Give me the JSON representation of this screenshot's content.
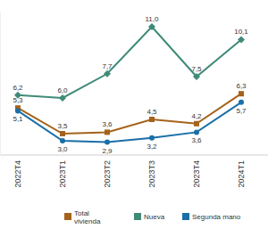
{
  "chart_data": {
    "type": "line",
    "categories": [
      "2022T4",
      "2023T1",
      "2023T2",
      "2023T3",
      "2023T4",
      "2024T1"
    ],
    "series": [
      {
        "name": "Total vivienda",
        "color": "#a5621b",
        "marker": "square",
        "values": [
          5.3,
          3.5,
          3.6,
          4.5,
          4.2,
          6.3
        ],
        "value_labels": [
          "5,3",
          "3,5",
          "3,6",
          "4,5",
          "4,2",
          "6,3"
        ]
      },
      {
        "name": "Nueva",
        "color": "#3f8a78",
        "marker": "diamond",
        "values": [
          6.2,
          6.0,
          7.7,
          11.0,
          7.5,
          10.1
        ],
        "value_labels": [
          "6,2",
          "6,0",
          "7,7",
          "11,0",
          "7,5",
          "10,1"
        ]
      },
      {
        "name": "Segunda mano",
        "color": "#1a6fa8",
        "marker": "circle",
        "values": [
          5.1,
          3.0,
          2.9,
          3.2,
          3.6,
          5.7
        ],
        "value_labels": [
          "5,1",
          "3,0",
          "2,9",
          "3,2",
          "3,6",
          "5,7"
        ]
      }
    ],
    "ylim": [
      2,
      12
    ],
    "data_labels": true,
    "tick_labels": "x",
    "grid": false,
    "legend": "bottom"
  }
}
